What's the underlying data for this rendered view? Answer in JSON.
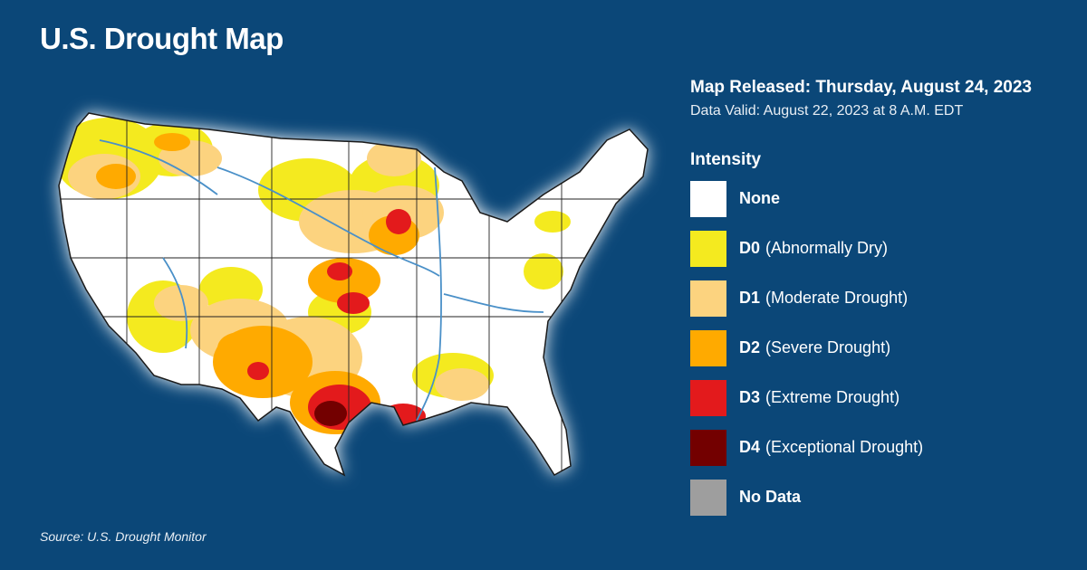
{
  "title": "U.S. Drought Map",
  "map_released": "Map Released: Thursday, August 24, 2023",
  "data_valid": "Data Valid: August 22, 2023 at 8 A.M. EDT",
  "legend": {
    "title": "Intensity",
    "items": [
      {
        "code": "None",
        "desc": "",
        "color": "#ffffff"
      },
      {
        "code": "D0",
        "desc": "(Abnormally Dry)",
        "color": "#f4ea1f"
      },
      {
        "code": "D1",
        "desc": "(Moderate Drought)",
        "color": "#fcd37f"
      },
      {
        "code": "D2",
        "desc": "(Severe Drought)",
        "color": "#ffaa00"
      },
      {
        "code": "D3",
        "desc": "(Extreme Drought)",
        "color": "#e31a1c"
      },
      {
        "code": "D4",
        "desc": "(Exceptional Drought)",
        "color": "#730000"
      },
      {
        "code": "No Data",
        "desc": "",
        "color": "#9e9e9e"
      }
    ]
  },
  "source": "Source: U.S. Drought Monitor"
}
